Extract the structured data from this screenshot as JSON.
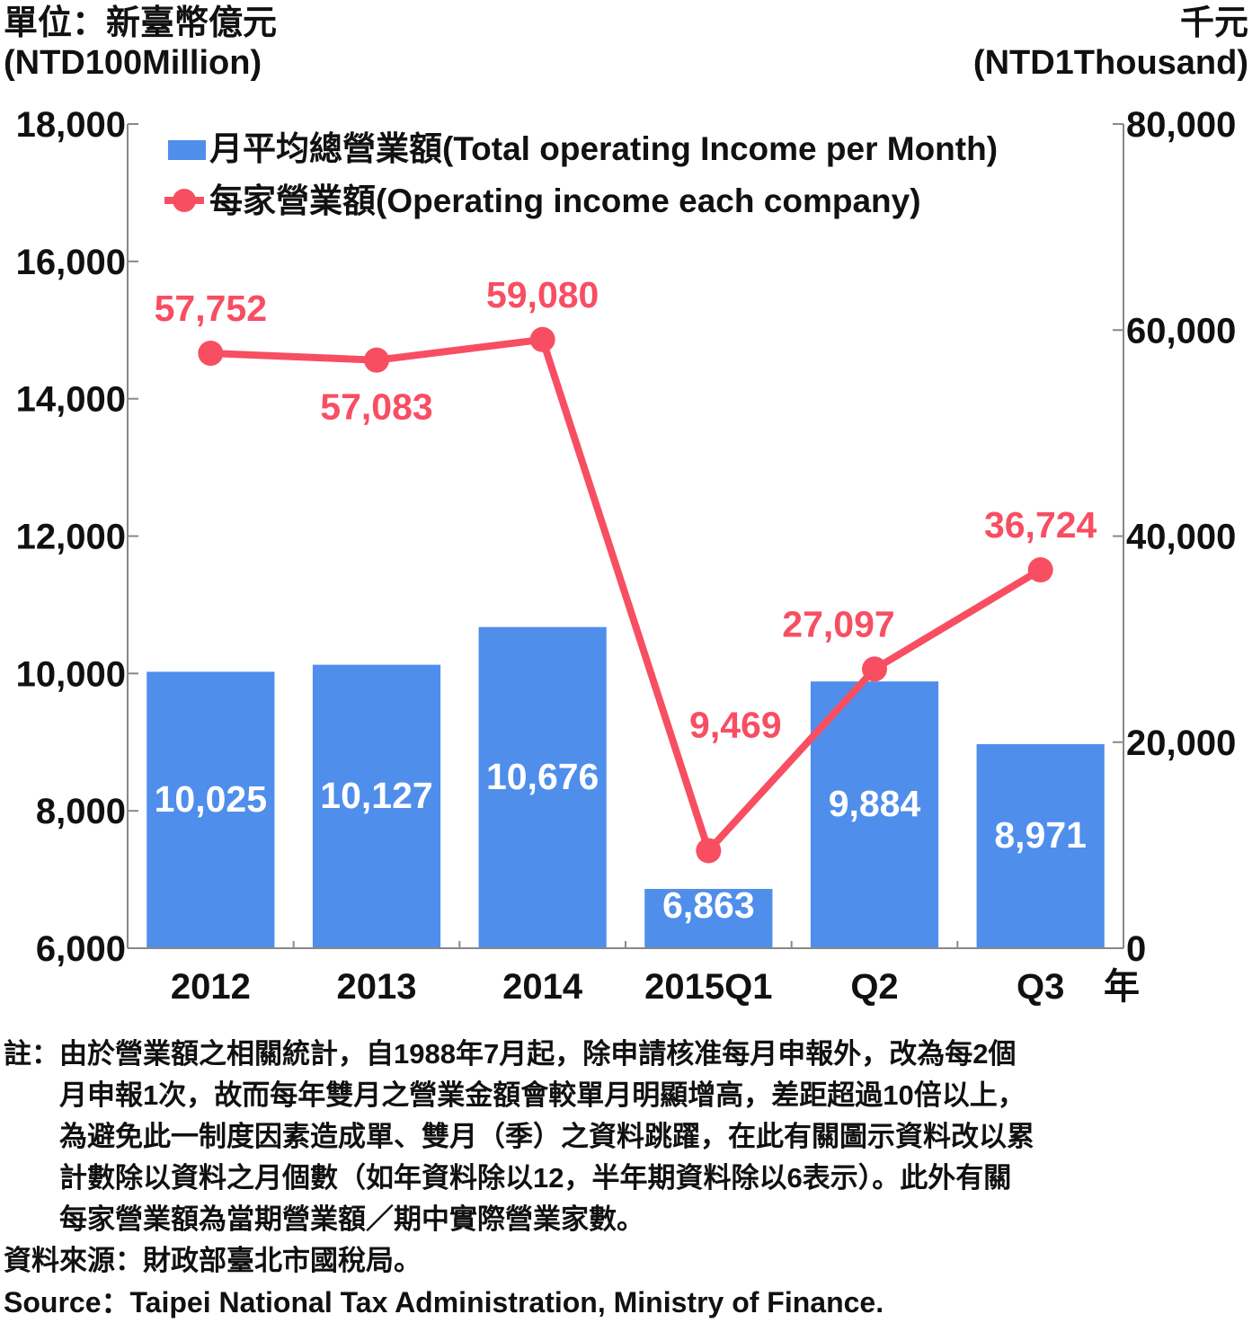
{
  "units": {
    "left_zh": "單位：新臺幣億元",
    "left_en": "(NTD100Million)",
    "right_zh": "千元",
    "right_en": "(NTD1Thousand)"
  },
  "chart_data": {
    "type": "bar+line",
    "categories": [
      "2012",
      "2013",
      "2014",
      "2015Q1",
      "Q2",
      "Q3"
    ],
    "x_suffix": "年",
    "y_left": {
      "min": 6000,
      "max": 18000,
      "ticks": [
        "6,000",
        "8,000",
        "10,000",
        "12,000",
        "14,000",
        "16,000",
        "18,000"
      ]
    },
    "y_right": {
      "min": 0,
      "max": 80000,
      "ticks": [
        "0",
        "20,000",
        "40,000",
        "60,000",
        "80,000"
      ]
    },
    "series": [
      {
        "name": "月平均總營業額(Total operating Income per Month)",
        "kind": "bar",
        "axis": "left",
        "color": "#4f8eeb",
        "values": [
          10025,
          10127,
          10676,
          6863,
          9884,
          8971
        ],
        "labels": [
          "10,025",
          "10,127",
          "10,676",
          "6,863",
          "9,884",
          "8,971"
        ]
      },
      {
        "name": "每家營業額(Operating income each company)",
        "kind": "line",
        "axis": "right",
        "color": "#f84e62",
        "values": [
          57752,
          57083,
          59080,
          9469,
          27097,
          36724
        ],
        "labels": [
          "57,752",
          "57,083",
          "59,080",
          "9,469",
          "27,097",
          "36,724"
        ]
      }
    ],
    "legend_position": "top-left",
    "grid": false
  },
  "notes": {
    "label": "註：",
    "lines": [
      "由於營業額之相關統計，自1988年7月起，除申請核准每月申報外，改為每2個",
      "月申報1次，故而每年雙月之營業金額會較單月明顯增高，差距超過10倍以上，",
      "為避免此一制度因素造成單、雙月（季）之資料跳躍，在此有關圖示資料改以累",
      "計數除以資料之月個數（如年資料除以12，半年期資料除以6表示）。此外有關",
      "每家營業額為當期營業額／期中實際營業家數。"
    ]
  },
  "source_zh": "資料來源：財政部臺北市國稅局。",
  "source_en": "Source：Taipei National Tax Administration, Ministry of Finance."
}
